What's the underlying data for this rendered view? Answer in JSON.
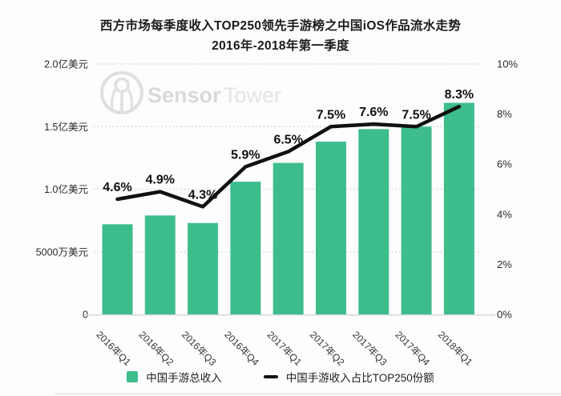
{
  "chart_data": {
    "type": "bar+line",
    "title": "西方市场每季度收入TOP250领先手游榜之中国iOS作品流水走势",
    "subtitle": "2016年-2018年第一季度",
    "categories": [
      "2016年Q1",
      "2016年Q2",
      "2016年Q3",
      "2016年Q4",
      "2017年Q1",
      "2017年Q2",
      "2017年Q3",
      "2017年Q4",
      "2018年Q1"
    ],
    "series": [
      {
        "name": "中国手游总收入",
        "type": "bar",
        "unit": "亿美元",
        "axis": "left",
        "color": "#3ebd8c",
        "values": [
          0.72,
          0.79,
          0.73,
          1.06,
          1.21,
          1.38,
          1.48,
          1.5,
          1.69
        ]
      },
      {
        "name": "中国手游收入占比TOP250份额",
        "type": "line",
        "unit": "%",
        "axis": "right",
        "color": "#111111",
        "values": [
          4.6,
          4.9,
          4.3,
          5.9,
          6.5,
          7.5,
          7.6,
          7.5,
          8.3
        ],
        "point_labels": [
          "4.6%",
          "4.9%",
          "4.3%",
          "5.9%",
          "6.5%",
          "7.5%",
          "7.6%",
          "7.5%",
          "8.3%"
        ]
      }
    ],
    "left_axis": {
      "labels": [
        "0",
        "5000万美元",
        "1.0亿美元",
        "1.5亿美元",
        "2.0亿美元"
      ],
      "values": [
        0,
        0.5,
        1.0,
        1.5,
        2.0
      ],
      "min": 0,
      "max": 2.0
    },
    "right_axis": {
      "labels": [
        "0%",
        "2%",
        "4%",
        "6%",
        "8%",
        "10%"
      ],
      "values": [
        0,
        2,
        4,
        6,
        8,
        10
      ],
      "min": 0,
      "max": 10
    },
    "grid": "horizontal-dotted",
    "legend_position": "bottom",
    "legend": [
      "中国手游总收入",
      "中国手游收入占比TOP250份额"
    ]
  },
  "watermark": {
    "icon": "sensortower-logo",
    "text_bold": "Sensor",
    "text_light": "Tower"
  },
  "colors": {
    "bar_green": "#3ebd8c",
    "line_black": "#111111",
    "grid_gray": "#cbcbcb",
    "watermark_gray": "#d9d9d9"
  }
}
